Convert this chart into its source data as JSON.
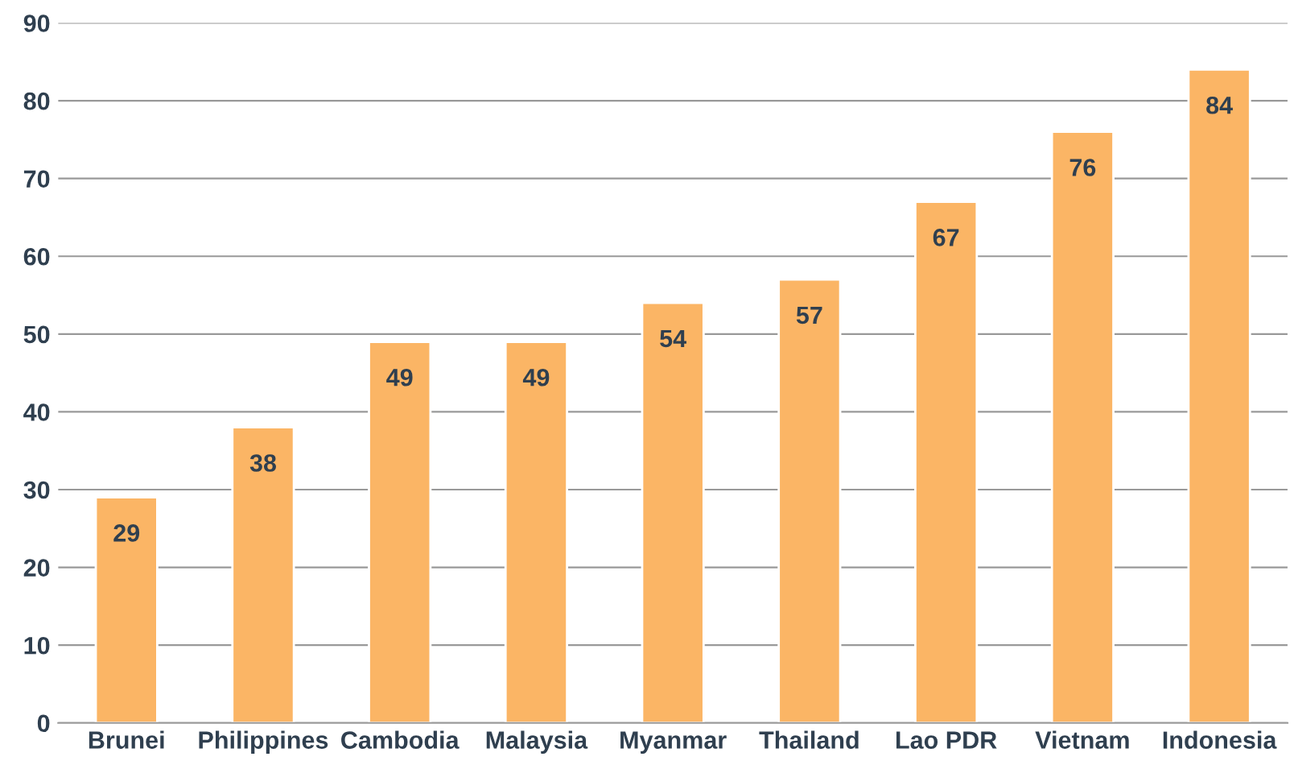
{
  "chart_data": {
    "type": "bar",
    "categories": [
      "Brunei",
      "Philippines",
      "Cambodia",
      "Malaysia",
      "Myanmar",
      "Thailand",
      "Lao PDR",
      "Vietnam",
      "Indonesia"
    ],
    "values": [
      29,
      38,
      49,
      49,
      54,
      57,
      67,
      76,
      84
    ],
    "color": "#fbb565",
    "ylim": [
      0,
      90
    ],
    "yticks": [
      0,
      10,
      20,
      30,
      40,
      50,
      60,
      70,
      80,
      90
    ],
    "grid": "y",
    "data_labels": true,
    "legend": false
  }
}
